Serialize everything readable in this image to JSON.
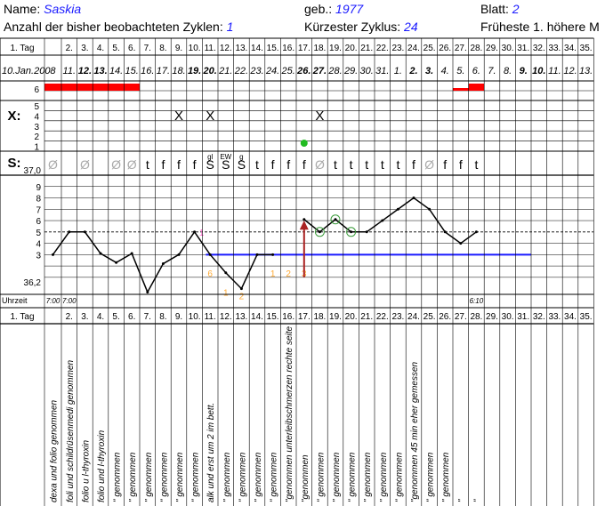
{
  "header": {
    "name_label": "Name:",
    "name_value": "Saskia",
    "born_label": "geb.:",
    "born_value": "1977",
    "sheet_label": "Blatt:",
    "sheet_value": "2",
    "cycles_label": "Anzahl der bisher beobachteten Zyklen:",
    "cycles_value": "1",
    "shortest_label": "Kürzester Zyklus:",
    "shortest_value": "24",
    "earliest_label": "Früheste 1. höhere M"
  },
  "row_labels": {
    "tag": "1. Tag",
    "tag_bottom": "1. Tag",
    "x_label": "X:",
    "s_label": "S:",
    "uhrzeit": "Uhrzeit",
    "temp_top": "37,0",
    "temp_bottom": "36,2"
  },
  "chart_data": {
    "type": "line",
    "days": [
      "1. Tag",
      "2.",
      "3.",
      "4.",
      "5.",
      "6.",
      "7.",
      "8.",
      "9.",
      "10.",
      "11.",
      "12.",
      "13.",
      "14.",
      "15.",
      "16.",
      "17.",
      "18.",
      "19.",
      "20.",
      "21.",
      "22.",
      "23.",
      "24.",
      "25.",
      "26.",
      "27.",
      "28.",
      "29.",
      "30.",
      "31.",
      "32.",
      "33.",
      "34.",
      "35."
    ],
    "dates": [
      "10.Jan.2008",
      "11.",
      "12.",
      "13.",
      "14.",
      "15.",
      "16.",
      "17.",
      "18.",
      "19.",
      "20.",
      "21.",
      "22.",
      "23.",
      "24.",
      "25.",
      "26.",
      "27.",
      "28.",
      "29.",
      "30.",
      "31.",
      "1.",
      "2.",
      "3.",
      "4.",
      "5.",
      "6.",
      "7.",
      "8.",
      "9.",
      "10.",
      "11.",
      "12.",
      "13."
    ],
    "bold_dates": [
      2,
      3,
      9,
      10,
      16,
      17,
      23,
      24,
      30,
      31
    ],
    "bleeding_scale": [
      "6",
      "5",
      "4",
      "3",
      "2",
      "1"
    ],
    "bleeding": [
      6,
      6,
      6,
      6,
      6,
      6,
      0,
      0,
      0,
      0,
      0,
      0,
      0,
      0,
      0,
      0,
      0,
      0,
      0,
      0,
      0,
      0,
      0,
      0,
      0,
      0,
      5,
      6,
      0,
      0,
      0,
      0,
      0,
      0,
      0
    ],
    "x_marks": [
      "",
      "",
      "",
      "",
      "",
      "",
      "",
      "",
      "X",
      "",
      "X",
      "",
      "",
      "",
      "",
      "",
      "",
      "X",
      "",
      "",
      "",
      "",
      "",
      "",
      "",
      "",
      "",
      "",
      "",
      "",
      "",
      "",
      "",
      "",
      ""
    ],
    "x_scale": [
      "5",
      "4",
      "3",
      "2",
      "1"
    ],
    "green_dot_day": 17,
    "mucus": [
      "Ø",
      "",
      "Ø",
      "",
      "Ø",
      "Ø",
      "t",
      "f",
      "f",
      "f",
      "S",
      "S",
      "S",
      "t",
      "f",
      "f",
      "f",
      "Ø",
      "t",
      "t",
      "t",
      "t",
      "t",
      "f",
      "Ø",
      "f",
      "f",
      "t",
      "",
      "",
      "",
      "",
      "",
      "",
      ""
    ],
    "mucus_notes": [
      "",
      "",
      "",
      "",
      "",
      "",
      "",
      "",
      "",
      "",
      "gl",
      "EW",
      "g",
      "",
      "",
      "",
      "",
      "",
      "",
      "",
      "",
      "",
      "",
      "",
      "",
      "",
      "",
      "",
      "",
      "",
      "",
      "",
      "",
      "",
      ""
    ],
    "temp_ylabels": [
      "9",
      "8",
      "7",
      "6",
      "5",
      "4",
      "3"
    ],
    "temps": [
      3,
      5,
      5,
      3.1,
      2.3,
      3.1,
      -0.3,
      2.2,
      3,
      5,
      3,
      1.4,
      0,
      3,
      3,
      null,
      6.1,
      5,
      6.1,
      5,
      5,
      6,
      7,
      8,
      7,
      5,
      4,
      5,
      null,
      null,
      null,
      null,
      null,
      null,
      null
    ],
    "ylim": [
      -0.5,
      10
    ],
    "coverline": 3,
    "circled_days": [
      18,
      19,
      20
    ],
    "orange_numbers": [
      "",
      "",
      "",
      "",
      "",
      "",
      "",
      "",
      "",
      "",
      "6",
      "",
      "",
      "",
      "1",
      "2",
      "3",
      "",
      "",
      "",
      "",
      "",
      "",
      "",
      "",
      "",
      "",
      "",
      "",
      "",
      "",
      "",
      "",
      "",
      ""
    ],
    "orange_low": [
      "",
      "",
      "",
      "",
      "",
      "",
      "",
      "",
      "",
      "",
      "",
      "1",
      "2",
      "",
      "",
      "",
      "",
      "",
      "",
      "",
      "",
      "",
      "",
      "",
      "",
      "",
      "",
      "",
      "",
      "",
      "",
      "",
      "",
      "",
      ""
    ],
    "pink_number": "1",
    "arrow_day": 17,
    "times": [
      "7:00",
      "7:00",
      "",
      "",
      "",
      "",
      "",
      "",
      "",
      "",
      "",
      "",
      "",
      "",
      "",
      "",
      "",
      "",
      "",
      "",
      "",
      "",
      "",
      "",
      "",
      "",
      "",
      "6:10",
      "",
      "",
      "",
      "",
      "",
      "",
      ""
    ],
    "notes": [
      "dexa und folio genommen",
      "foli und schildrüsenmedi genommen",
      "folio u l-thyroxin",
      "folio und l-thyroxin",
      "\" genommen",
      "\" genommen",
      "\" genommen",
      "\" genommen",
      "\" genommen",
      "\" genommen",
      "alk und erst um 2 im bett.",
      "\" genommen",
      "\" genommen",
      "\" genommen",
      "\" genommen",
      "\"genommen unterleibschmerzen rechte seite",
      "\"genommen",
      "\" genommen",
      "\" genommen",
      "\" genommen",
      "\" genommen",
      "\" genommen",
      "\" genommen",
      "\"genommen 45 min eher gemessen",
      "\" genommen",
      "\" genommen",
      "\"",
      "\"",
      "",
      "",
      "",
      "",
      "",
      "",
      ""
    ],
    "colors": {
      "bleeding": "#ff0000",
      "temp_line": "#000000",
      "coverline": "#1a1aff",
      "circle": "#3a9a3a",
      "green_dot": "#22bb22",
      "orange": "#ffaa33",
      "arrow": "#aa2222",
      "pink": "#ff66cc",
      "header_value": "#1a1aff"
    }
  }
}
